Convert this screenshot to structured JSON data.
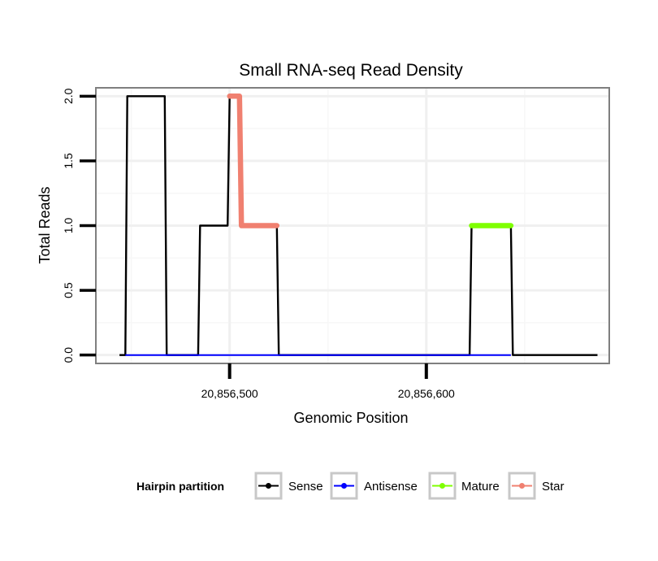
{
  "chart_data": {
    "type": "line",
    "title": "Small RNA-seq Read Density",
    "xlabel": "Genomic Position",
    "ylabel": "Total Reads",
    "xlim": [
      20856432,
      20856693
    ],
    "ylim": [
      -0.065,
      2.065
    ],
    "x_ticks": [
      {
        "value": 20856500,
        "label": "20,856,500"
      },
      {
        "value": 20856600,
        "label": "20,856,600"
      }
    ],
    "y_ticks": [
      {
        "value": 0,
        "label": "0.0"
      },
      {
        "value": 0.5,
        "label": "0.5"
      },
      {
        "value": 1,
        "label": "1.0"
      },
      {
        "value": 1.5,
        "label": "1.5"
      },
      {
        "value": 2,
        "label": "2.0"
      }
    ],
    "grid_minor_x": [
      20856450,
      20856550,
      20856650
    ],
    "grid_minor_y": [
      0.25,
      0.75,
      1.25,
      1.75
    ],
    "series": [
      {
        "name": "Sense",
        "color": "#000000",
        "points": [
          [
            20856444,
            0
          ],
          [
            20856447,
            0
          ],
          [
            20856448,
            2
          ],
          [
            20856467,
            2
          ],
          [
            20856468,
            0
          ],
          [
            20856484,
            0
          ],
          [
            20856485,
            1
          ],
          [
            20856499,
            1
          ],
          [
            20856500,
            2
          ],
          [
            20856505,
            2
          ],
          [
            20856506,
            1
          ],
          [
            20856524,
            1
          ],
          [
            20856525,
            0
          ],
          [
            20856622,
            0
          ],
          [
            20856623,
            1
          ],
          [
            20856643,
            1
          ],
          [
            20856644,
            0
          ],
          [
            20856687,
            0
          ]
        ]
      },
      {
        "name": "Antisense",
        "color": "#0000ff",
        "points": [
          [
            20856447,
            0
          ],
          [
            20856467,
            0
          ],
          [
            20856485,
            0
          ],
          [
            20856524,
            0
          ],
          [
            20856623,
            0
          ],
          [
            20856643,
            0
          ]
        ]
      },
      {
        "name": "Mature",
        "color": "#7fff00",
        "points": [
          [
            20856623,
            1
          ],
          [
            20856643,
            1
          ]
        ]
      },
      {
        "name": "Star",
        "color": "#f08070",
        "points": [
          [
            20856500,
            2
          ],
          [
            20856505,
            2
          ],
          [
            20856506,
            1
          ],
          [
            20856524,
            1
          ]
        ]
      }
    ],
    "legend": {
      "title": "Hairpin partition",
      "placement": "bottom",
      "entries": [
        {
          "name": "Sense",
          "color": "#000000"
        },
        {
          "name": "Antisense",
          "color": "#0000ff"
        },
        {
          "name": "Mature",
          "color": "#7fff00"
        },
        {
          "name": "Star",
          "color": "#f08070"
        }
      ]
    }
  }
}
